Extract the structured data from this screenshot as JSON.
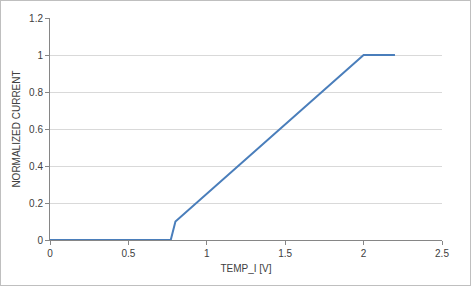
{
  "chart_data": {
    "type": "line",
    "x": [
      0,
      0.77,
      0.8,
      2.0,
      2.2
    ],
    "values": [
      0,
      0,
      0.1,
      1.0,
      1.0
    ],
    "color": "#4a7ebb",
    "x_label": "TEMP_I [V]",
    "y_label": "NORMALIZED CURRENT",
    "xlim": [
      0,
      2.5
    ],
    "xticks": [
      0,
      0.5,
      1,
      1.5,
      2,
      2.5
    ],
    "ylim": [
      0,
      1.2
    ],
    "yticks": [
      0,
      0.2,
      0.4,
      0.6,
      0.8,
      1,
      1.2
    ],
    "grid": true
  }
}
